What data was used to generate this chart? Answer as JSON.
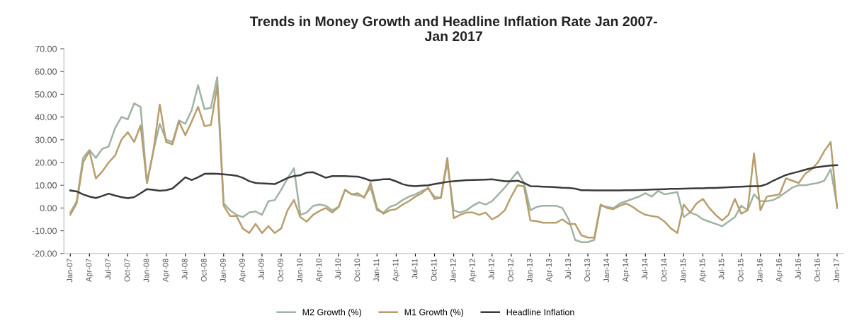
{
  "chart_data": {
    "type": "line",
    "title": "Trends in Money Growth and Headline Inflation Rate Jan 2007-\nJan 2017",
    "categories": [
      "Jan-07",
      null,
      null,
      "Apr-07",
      null,
      null,
      "Jul-07",
      null,
      null,
      "Oct-07",
      null,
      null,
      "Jan-08",
      null,
      null,
      "Apr-08",
      null,
      null,
      "Jul-08",
      null,
      null,
      "Oct-08",
      null,
      null,
      "Jan-09",
      null,
      null,
      "Apr-09",
      null,
      null,
      "Jul-09",
      null,
      null,
      "Oct-09",
      null,
      null,
      "Jan-10",
      null,
      null,
      "Apr-10",
      null,
      null,
      "Jul-10",
      null,
      null,
      "Oct-10",
      null,
      null,
      "Jan-11",
      null,
      null,
      "Apr-11",
      null,
      null,
      "Jul-11",
      null,
      null,
      "Oct-11",
      null,
      null,
      "Jan-12",
      null,
      null,
      "Apr-12",
      null,
      null,
      "Jul-12",
      null,
      null,
      "Oct-12",
      null,
      null,
      "Jan-13",
      null,
      null,
      "Apr-13",
      null,
      null,
      "Jul-13",
      null,
      null,
      "Oct-13",
      null,
      null,
      "Jan-14",
      null,
      null,
      "Apr-14",
      null,
      null,
      "Jul-14",
      null,
      null,
      "Oct-14",
      null,
      null,
      "Jan-15",
      null,
      null,
      "Apr-15",
      null,
      null,
      "Jul-15",
      null,
      null,
      "Oct-15",
      null,
      null,
      "Jan-16",
      null,
      null,
      "Apr-16",
      null,
      null,
      "Jul-16",
      null,
      null,
      "Oct-16",
      null,
      null,
      "Jan-17"
    ],
    "series": [
      {
        "name": "M2 Growth (%)",
        "color": "#9fb3a3",
        "values": [
          -2,
          3,
          22,
          25.5,
          22,
          26,
          27,
          35,
          40,
          39,
          46,
          44.5,
          11,
          25,
          37,
          30,
          29,
          38.5,
          37,
          43,
          54,
          43.5,
          44,
          57.5,
          2,
          -1,
          -3,
          -4,
          -2,
          -1.5,
          -3,
          3,
          3.5,
          8,
          13,
          17.5,
          -3,
          -2,
          0.9,
          1.5,
          1,
          -1,
          0.5,
          8,
          6,
          5.5,
          5,
          9,
          -1,
          -2,
          0.5,
          1.5,
          3.5,
          5,
          6,
          7.5,
          8.5,
          5,
          4.5,
          20,
          -1,
          -2,
          -1,
          1,
          2.5,
          1.5,
          3,
          6,
          9,
          12.5,
          16,
          11,
          -1,
          0.5,
          1,
          1,
          1,
          0,
          -5,
          -14,
          -15,
          -15,
          -14,
          1,
          0.5,
          0,
          2,
          3,
          4,
          5,
          6.5,
          5,
          7.5,
          6,
          6.5,
          7,
          -4,
          -2,
          -3,
          -5,
          -6,
          -7,
          -8,
          -6,
          -4,
          1,
          -1,
          6,
          3,
          3,
          3.5,
          5,
          7,
          9,
          10,
          10,
          10.5,
          11,
          12,
          17,
          1
        ]
      },
      {
        "name": "M1 Growth (%)",
        "color": "#b89e6c",
        "values": [
          -3,
          2,
          20,
          25,
          13,
          16,
          20,
          23,
          30,
          33.3,
          29,
          36.3,
          11,
          25,
          45.5,
          29,
          28,
          38,
          32,
          38,
          44.5,
          36,
          36.5,
          54,
          1,
          -3.5,
          -3.5,
          -9,
          -11,
          -7,
          -11,
          -8,
          -11,
          -9,
          -1,
          3.5,
          -4,
          -6,
          -3,
          -1.3,
          0,
          -2,
          0.5,
          8,
          6,
          6.5,
          4.5,
          11,
          0,
          -2.5,
          -1,
          -0.5,
          1.5,
          3,
          5,
          6.5,
          9,
          4,
          4.5,
          22,
          -4.5,
          -3,
          -2,
          -2,
          -3,
          -2,
          -5,
          -3.5,
          -1,
          5,
          10,
          9.5,
          -5.5,
          -5.8,
          -6.5,
          -6.5,
          -6.5,
          -5,
          -7,
          -7,
          -12,
          -13,
          -13,
          1.5,
          0,
          -0.5,
          1,
          2,
          0.5,
          -1.5,
          -3,
          -3.5,
          -4,
          -6,
          -9,
          -11,
          1.5,
          -2,
          2,
          4,
          0,
          -3,
          -5.5,
          -3,
          4,
          -2.5,
          -1,
          24,
          -1,
          5,
          5.5,
          6,
          13,
          12,
          11,
          15,
          17,
          20,
          25,
          29,
          0
        ]
      },
      {
        "name": "Headline Inflation",
        "color": "#3a3a3a",
        "values": [
          7.7,
          7.3,
          6.0,
          5.0,
          4.4,
          5.3,
          6.3,
          5.5,
          4.8,
          4.3,
          4.8,
          6.5,
          8.3,
          8.0,
          7.6,
          7.8,
          8.6,
          11,
          13.5,
          12.3,
          13.5,
          15.0,
          15.1,
          15.0,
          14.8,
          14.6,
          14.2,
          13.3,
          11.8,
          11.0,
          10.8,
          10.7,
          10.5,
          11.8,
          13.2,
          14.0,
          14.4,
          15.6,
          15.7,
          14.5,
          13.3,
          14,
          14,
          14,
          13.9,
          13.8,
          13,
          12,
          12.3,
          12.6,
          12.7,
          11.7,
          10.5,
          9.8,
          9.6,
          9.8,
          10,
          10.5,
          11,
          11.5,
          11.8,
          12,
          12.2,
          12.3,
          12.4,
          12.5,
          12.6,
          12.2,
          11.8,
          11.8,
          12,
          11,
          9.6,
          9.5,
          9.4,
          9.3,
          9.1,
          8.9,
          8.8,
          8.5,
          7.8,
          7.8,
          7.7,
          7.7,
          7.7,
          7.7,
          7.7,
          7.8,
          7.8,
          7.9,
          8,
          8.1,
          8.2,
          8.3,
          8.4,
          8.4,
          8.5,
          8.6,
          8.7,
          8.7,
          8.8,
          8.8,
          9,
          9.1,
          9.3,
          9.4,
          9.5,
          9.6,
          9.6,
          10.5,
          12,
          13.3,
          14.5,
          15.3,
          16,
          16.8,
          17.5,
          18,
          18.4,
          18.7,
          18.8
        ]
      }
    ],
    "ylim": [
      -20,
      70
    ],
    "yticks": [
      {
        "value": -20,
        "label": "-20.00"
      },
      {
        "value": -10,
        "label": "-10.00"
      },
      {
        "value": 0,
        "label": "0.00"
      },
      {
        "value": 10,
        "label": "10.00"
      },
      {
        "value": 20,
        "label": "20.00"
      },
      {
        "value": 30,
        "label": "30.00"
      },
      {
        "value": 40,
        "label": "40.00"
      },
      {
        "value": 50,
        "label": "50.00"
      },
      {
        "value": 60,
        "label": "60.00"
      },
      {
        "value": 70,
        "label": "70.00"
      }
    ],
    "legend": "bottom",
    "grid": false,
    "marker": "none",
    "line_style": "solid"
  }
}
